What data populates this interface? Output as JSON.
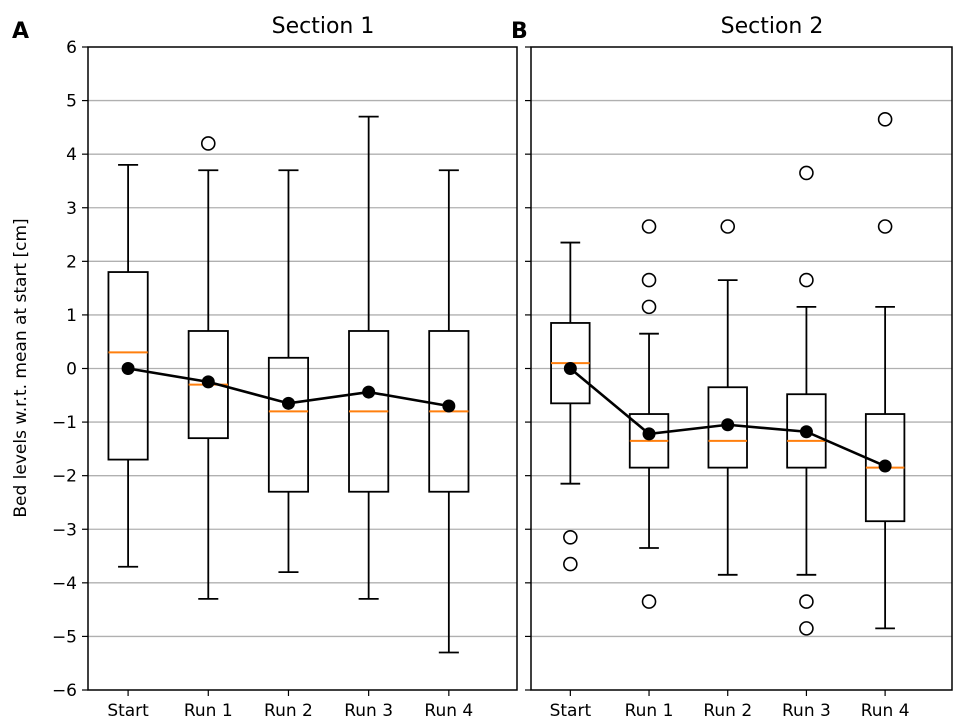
{
  "chart_data": [
    {
      "type": "box",
      "panel_label": "A",
      "title": "Section 1",
      "ylabel": "Bed levels w.r.t. mean at start [cm]",
      "ylim": [
        -6,
        6
      ],
      "yticks": [
        6,
        5,
        4,
        3,
        2,
        1,
        0,
        -1,
        -2,
        -3,
        -4,
        -5,
        -6
      ],
      "ytick_labels": [
        "6",
        "5",
        "4",
        "3",
        "2",
        "1",
        "0",
        "−1",
        "−2",
        "−3",
        "−4",
        "−5",
        "−6"
      ],
      "grid": true,
      "categories": [
        "Start",
        "Run 1",
        "Run 2",
        "Run 3",
        "Run 4"
      ],
      "boxes": [
        {
          "whisker_low": -3.7,
          "q1": -1.7,
          "median": 0.3,
          "q3": 1.8,
          "whisker_high": 3.8,
          "outliers": []
        },
        {
          "whisker_low": -4.3,
          "q1": -1.3,
          "median": -0.3,
          "q3": 0.7,
          "whisker_high": 3.7,
          "outliers": [
            4.2
          ]
        },
        {
          "whisker_low": -3.8,
          "q1": -2.3,
          "median": -0.8,
          "q3": 0.2,
          "whisker_high": 3.7,
          "outliers": []
        },
        {
          "whisker_low": -4.3,
          "q1": -2.3,
          "median": -0.8,
          "q3": 0.7,
          "whisker_high": 4.7,
          "outliers": []
        },
        {
          "whisker_low": -5.3,
          "q1": -2.3,
          "median": -0.8,
          "q3": 0.7,
          "whisker_high": 3.7,
          "outliers": []
        }
      ],
      "means": [
        0.0,
        -0.25,
        -0.65,
        -0.44,
        -0.7
      ],
      "colors": {
        "median": "#ff7f0e",
        "mean": "#000000",
        "box": "#000000",
        "grid": "#b0b0b0"
      }
    },
    {
      "type": "box",
      "panel_label": "B",
      "title": "Section 2",
      "ylabel": "",
      "ylim": [
        -6,
        6
      ],
      "yticks": [
        6,
        5,
        4,
        3,
        2,
        1,
        0,
        -1,
        -2,
        -3,
        -4,
        -5,
        -6
      ],
      "ytick_labels": [],
      "grid": true,
      "categories": [
        "Start",
        "Run 1",
        "Run 2",
        "Run 3",
        "Run 4"
      ],
      "boxes": [
        {
          "whisker_low": -2.15,
          "q1": -0.65,
          "median": 0.1,
          "q3": 0.85,
          "whisker_high": 2.35,
          "outliers": [
            -3.15,
            -3.65
          ]
        },
        {
          "whisker_low": -3.35,
          "q1": -1.85,
          "median": -1.35,
          "q3": -0.85,
          "whisker_high": 0.65,
          "outliers": [
            2.65,
            1.65,
            1.15,
            -4.35
          ]
        },
        {
          "whisker_low": -3.85,
          "q1": -1.85,
          "median": -1.35,
          "q3": -0.35,
          "whisker_high": 1.65,
          "outliers": [
            2.65
          ]
        },
        {
          "whisker_low": -3.85,
          "q1": -1.85,
          "median": -1.35,
          "q3": -0.48,
          "whisker_high": 1.15,
          "outliers": [
            3.65,
            1.65,
            -4.35,
            -4.85
          ]
        },
        {
          "whisker_low": -4.85,
          "q1": -2.85,
          "median": -1.85,
          "q3": -0.85,
          "whisker_high": 1.15,
          "outliers": [
            4.65,
            2.65
          ]
        }
      ],
      "means": [
        0.0,
        -1.22,
        -1.05,
        -1.18,
        -1.82
      ],
      "colors": {
        "median": "#ff7f0e",
        "mean": "#000000",
        "box": "#000000",
        "grid": "#b0b0b0"
      }
    }
  ]
}
